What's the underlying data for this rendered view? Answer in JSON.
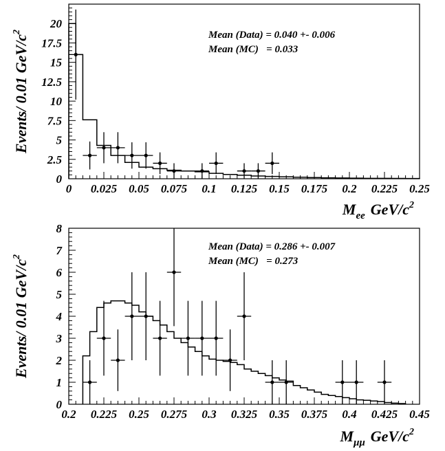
{
  "chart_data": [
    {
      "type": "histogram-with-points",
      "xlabel_main": "M",
      "xlabel_sub": "ee",
      "xlabel_unit": "GeV/c",
      "xlabel_unit_sup": "2",
      "ylabel": "Events/ 0.01 GeV/c",
      "ylabel_sup": "2",
      "xlim": [
        0,
        0.25
      ],
      "ylim": [
        0,
        22
      ],
      "x_ticks": [
        0,
        0.025,
        0.05,
        0.075,
        0.1,
        0.125,
        0.15,
        0.175,
        0.2,
        0.225,
        0.25
      ],
      "x_tick_labels": [
        "0",
        "0.025",
        "0.05",
        "0.075",
        "0.1",
        "0.125",
        "0.15",
        "0.175",
        "0.2",
        "0.225",
        "0.25"
      ],
      "y_ticks": [
        0,
        2.5,
        5,
        7.5,
        10,
        12.5,
        15,
        17.5,
        20
      ],
      "y_tick_labels": [
        "0",
        "2.5",
        "5",
        "7.5",
        "10",
        "12.5",
        "15",
        "17.5",
        "20"
      ],
      "annotations": [
        "Mean (Data) = 0.040 +- 0.006",
        "Mean (MC)   = 0.033"
      ],
      "mc_histogram": {
        "bin_edges": [
          0,
          0.005,
          0.01,
          0.015,
          0.02,
          0.025,
          0.03,
          0.035,
          0.04,
          0.045,
          0.05,
          0.055,
          0.06,
          0.065,
          0.07,
          0.075,
          0.08,
          0.085,
          0.09,
          0.095,
          0.1,
          0.105,
          0.11,
          0.115,
          0.12,
          0.125,
          0.13,
          0.135,
          0.14,
          0.145,
          0.15,
          0.155,
          0.16,
          0.165,
          0.17,
          0.175,
          0.18,
          0.185,
          0.19,
          0.195,
          0.2,
          0.205,
          0.21,
          0.215,
          0.22,
          0.225,
          0.23,
          0.235,
          0.24,
          0.245,
          0.25
        ],
        "values": [
          20,
          16,
          7.6,
          7.6,
          4.3,
          4.3,
          3.0,
          3.0,
          2.1,
          2.1,
          1.5,
          1.5,
          1.3,
          1.3,
          1.1,
          1.1,
          1.0,
          1.0,
          0.9,
          0.9,
          0.7,
          0.7,
          0.55,
          0.55,
          0.45,
          0.45,
          0.35,
          0.35,
          0.3,
          0.3,
          0.25,
          0.25,
          0.2,
          0.2,
          0.15,
          0.15,
          0.12,
          0.12,
          0.1,
          0.1,
          0.08,
          0.08,
          0.06,
          0.06,
          0.05,
          0.05,
          0.04,
          0.04,
          0.03,
          0.03
        ]
      },
      "data_points": [
        {
          "x": 0.005,
          "y": 16,
          "err": 5.8
        },
        {
          "x": 0.015,
          "y": 3,
          "err": 1.8
        },
        {
          "x": 0.025,
          "y": 4,
          "err": 2.0
        },
        {
          "x": 0.035,
          "y": 4,
          "err": 2.0
        },
        {
          "x": 0.045,
          "y": 3,
          "err": 1.7
        },
        {
          "x": 0.055,
          "y": 3,
          "err": 1.7
        },
        {
          "x": 0.065,
          "y": 2,
          "err": 1.4
        },
        {
          "x": 0.075,
          "y": 1,
          "err": 1.0
        },
        {
          "x": 0.095,
          "y": 1,
          "err": 1.0
        },
        {
          "x": 0.105,
          "y": 2,
          "err": 1.4
        },
        {
          "x": 0.125,
          "y": 1,
          "err": 1.0
        },
        {
          "x": 0.135,
          "y": 1,
          "err": 1.0
        },
        {
          "x": 0.145,
          "y": 2,
          "err": 1.4
        }
      ]
    },
    {
      "type": "histogram-with-points",
      "xlabel_main": "M",
      "xlabel_sub": "μμ",
      "xlabel_unit": "GeV/c",
      "xlabel_unit_sup": "2",
      "ylabel": "Events/ 0.01 GeV/c",
      "ylabel_sup": "2",
      "xlim": [
        0.2,
        0.45
      ],
      "ylim": [
        0,
        8
      ],
      "x_ticks": [
        0.2,
        0.225,
        0.25,
        0.275,
        0.3,
        0.325,
        0.35,
        0.375,
        0.4,
        0.425,
        0.45
      ],
      "x_tick_labels": [
        "0.2",
        "0.225",
        "0.25",
        "0.275",
        "0.3",
        "0.325",
        "0.35",
        "0.375",
        "0.4",
        "0.425",
        "0.45"
      ],
      "y_ticks": [
        0,
        1,
        2,
        3,
        4,
        5,
        6,
        7,
        8
      ],
      "y_tick_labels": [
        "0",
        "1",
        "2",
        "3",
        "4",
        "5",
        "6",
        "7",
        "8"
      ],
      "annotations": [
        "Mean (Data) = 0.286 +- 0.007",
        "Mean (MC)   = 0.273"
      ],
      "mc_histogram": {
        "bin_edges": [
          0.21,
          0.215,
          0.22,
          0.225,
          0.23,
          0.235,
          0.24,
          0.245,
          0.25,
          0.255,
          0.26,
          0.265,
          0.27,
          0.275,
          0.28,
          0.285,
          0.29,
          0.295,
          0.3,
          0.305,
          0.31,
          0.315,
          0.32,
          0.325,
          0.33,
          0.335,
          0.34,
          0.345,
          0.35,
          0.355,
          0.36,
          0.365,
          0.37,
          0.375,
          0.38,
          0.385,
          0.39,
          0.395,
          0.4,
          0.405,
          0.41,
          0.415,
          0.42,
          0.425,
          0.43,
          0.435,
          0.44
        ],
        "values": [
          2.2,
          3.3,
          4.4,
          4.6,
          4.7,
          4.7,
          4.6,
          4.5,
          4.2,
          4.0,
          3.8,
          3.6,
          3.3,
          3.0,
          2.8,
          2.6,
          2.4,
          2.2,
          2.05,
          2.0,
          1.95,
          1.9,
          1.8,
          1.6,
          1.5,
          1.4,
          1.3,
          1.2,
          1.1,
          1.05,
          0.85,
          0.75,
          0.65,
          0.55,
          0.45,
          0.4,
          0.35,
          0.3,
          0.25,
          0.2,
          0.18,
          0.15,
          0.12,
          0.08,
          0.05,
          0.03
        ]
      },
      "data_points": [
        {
          "x": 0.215,
          "y": 1,
          "err": 1.0
        },
        {
          "x": 0.225,
          "y": 3,
          "err": 1.7
        },
        {
          "x": 0.235,
          "y": 2,
          "err": 1.4
        },
        {
          "x": 0.245,
          "y": 4,
          "err": 2.0
        },
        {
          "x": 0.255,
          "y": 4,
          "err": 2.0
        },
        {
          "x": 0.265,
          "y": 3,
          "err": 1.7
        },
        {
          "x": 0.275,
          "y": 6,
          "err": 2.45
        },
        {
          "x": 0.285,
          "y": 3,
          "err": 1.7
        },
        {
          "x": 0.295,
          "y": 3,
          "err": 1.7
        },
        {
          "x": 0.305,
          "y": 3,
          "err": 1.7
        },
        {
          "x": 0.315,
          "y": 2,
          "err": 1.4
        },
        {
          "x": 0.325,
          "y": 4,
          "err": 2.0
        },
        {
          "x": 0.345,
          "y": 1,
          "err": 1.0
        },
        {
          "x": 0.355,
          "y": 1,
          "err": 1.0
        },
        {
          "x": 0.395,
          "y": 1,
          "err": 1.0
        },
        {
          "x": 0.405,
          "y": 1,
          "err": 1.0
        },
        {
          "x": 0.425,
          "y": 1,
          "err": 1.0
        }
      ]
    }
  ]
}
